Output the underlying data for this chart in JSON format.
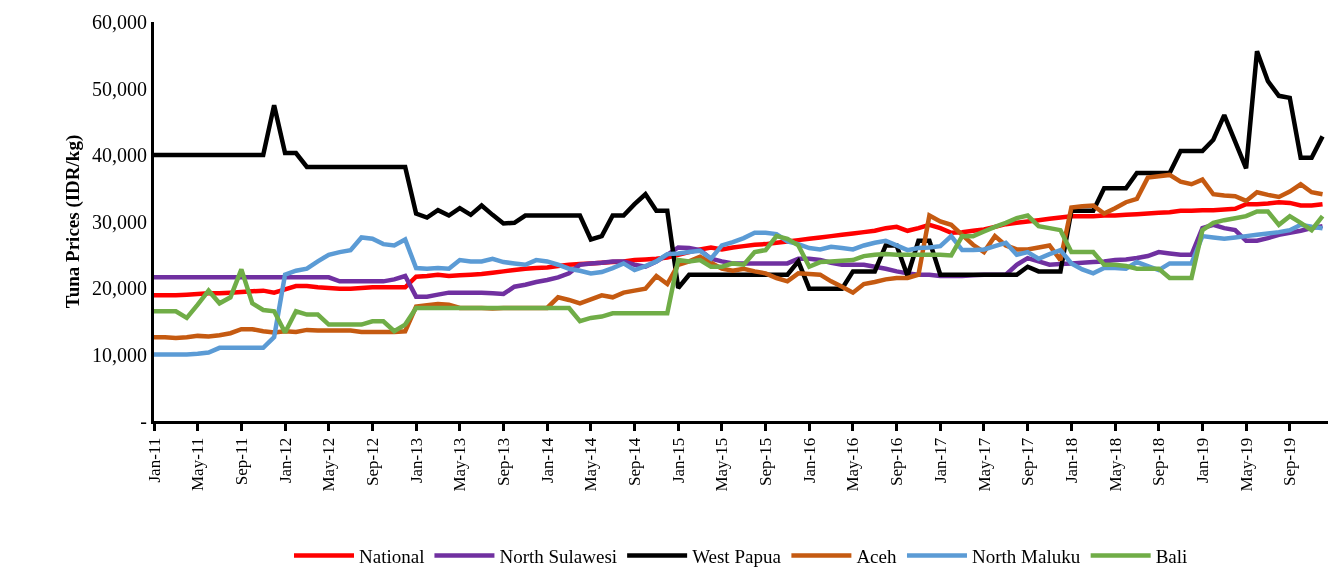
{
  "chart_data": {
    "type": "line",
    "ylabel": "Tuna Prices (IDR/kg)",
    "categories": [
      "Jan-11",
      null,
      null,
      null,
      "May-11",
      null,
      null,
      null,
      "Sep-11",
      null,
      null,
      null,
      "Jan-12",
      null,
      null,
      null,
      "May-12",
      null,
      null,
      null,
      "Sep-12",
      null,
      null,
      null,
      "Jan-13",
      null,
      null,
      null,
      "May-13",
      null,
      null,
      null,
      "Sep-13",
      null,
      null,
      null,
      "Jan-14",
      null,
      null,
      null,
      "May-14",
      null,
      null,
      null,
      "Sep-14",
      null,
      null,
      null,
      "Jan-15",
      null,
      null,
      null,
      "May-15",
      null,
      null,
      null,
      "Sep-15",
      null,
      null,
      null,
      "Jan-16",
      null,
      null,
      null,
      "May-16",
      null,
      null,
      null,
      "Sep-16",
      null,
      null,
      null,
      "Jan-17",
      null,
      null,
      null,
      "May-17",
      null,
      null,
      null,
      "Sep-17",
      null,
      null,
      null,
      "Jan-18",
      null,
      null,
      null,
      "May-18",
      null,
      null,
      null,
      "Sep-18",
      null,
      null,
      null,
      "Jan-19",
      null,
      null,
      null,
      "May-19",
      null,
      null,
      null,
      "Sep-19",
      null,
      null,
      null
    ],
    "ylim": [
      0,
      60000
    ],
    "yticks": [
      {
        "value": 0,
        "label": "-"
      },
      {
        "value": 10000,
        "label": "10,000"
      },
      {
        "value": 20000,
        "label": "20,000"
      },
      {
        "value": 30000,
        "label": "30,000"
      },
      {
        "value": 40000,
        "label": "40,000"
      },
      {
        "value": 50000,
        "label": "50,000"
      },
      {
        "value": 60000,
        "label": "60,000"
      }
    ],
    "legend": "bottom",
    "marker": "none",
    "line_style": "solid",
    "series": [
      {
        "name": "National",
        "color": "#ff0000",
        "values": [
          18900,
          18900,
          18900,
          19000,
          19100,
          19200,
          19200,
          19300,
          19400,
          19500,
          19600,
          19300,
          19800,
          20300,
          20300,
          20100,
          20000,
          19900,
          19900,
          20000,
          20100,
          20100,
          20100,
          20100,
          21700,
          21800,
          22000,
          21800,
          21900,
          22000,
          22100,
          22300,
          22500,
          22700,
          22900,
          23000,
          23100,
          23300,
          23500,
          23600,
          23700,
          23800,
          23900,
          24000,
          24200,
          24300,
          24400,
          24600,
          25000,
          25400,
          25800,
          26100,
          25800,
          26100,
          26300,
          26500,
          26600,
          26800,
          27000,
          27200,
          27400,
          27600,
          27800,
          28000,
          28200,
          28400,
          28600,
          29000,
          29200,
          28600,
          29000,
          29500,
          29000,
          28300,
          28400,
          28600,
          28800,
          29200,
          29600,
          29800,
          30000,
          30200,
          30400,
          30600,
          30800,
          30800,
          30800,
          30900,
          30900,
          31000,
          31100,
          31200,
          31300,
          31400,
          31600,
          31600,
          31700,
          31700,
          31800,
          31900,
          32600,
          32600,
          32700,
          32900,
          32800,
          32400,
          32400,
          32600
        ]
      },
      {
        "name": "North Sulawesi",
        "color": "#7030a0",
        "values": [
          21600,
          21600,
          21600,
          21600,
          21600,
          21600,
          21600,
          21600,
          21600,
          21600,
          21600,
          21600,
          21600,
          21600,
          21600,
          21600,
          21600,
          21000,
          21000,
          21000,
          21000,
          21000,
          21300,
          21800,
          18700,
          18700,
          19000,
          19300,
          19300,
          19300,
          19300,
          19200,
          19100,
          20200,
          20500,
          20900,
          21200,
          21600,
          22200,
          23500,
          23700,
          23800,
          24000,
          24000,
          23500,
          23200,
          24000,
          25000,
          26100,
          26000,
          25700,
          24400,
          24000,
          23700,
          23700,
          23700,
          23700,
          23700,
          23700,
          24400,
          24400,
          24200,
          23800,
          23500,
          23500,
          23500,
          23200,
          22900,
          22500,
          22200,
          22000,
          22000,
          21800,
          21800,
          21800,
          21900,
          22000,
          22000,
          22000,
          23500,
          24500,
          24000,
          23500,
          23600,
          23700,
          23800,
          23900,
          24000,
          24200,
          24300,
          24500,
          24800,
          25400,
          25200,
          25000,
          25000,
          29000,
          29500,
          29000,
          28700,
          27100,
          27100,
          27500,
          28000,
          28300,
          28600,
          29000,
          29300
        ]
      },
      {
        "name": "West Papua",
        "color": "#000000",
        "values": [
          40000,
          40000,
          40000,
          40000,
          40000,
          40000,
          40000,
          40000,
          40000,
          40000,
          40000,
          47500,
          40300,
          40300,
          38200,
          38200,
          38200,
          38200,
          38200,
          38200,
          38200,
          38200,
          38200,
          38200,
          31200,
          30600,
          31700,
          30900,
          32000,
          31000,
          32400,
          31000,
          29700,
          29800,
          30900,
          30900,
          30900,
          30900,
          30900,
          30900,
          27300,
          27800,
          30900,
          30900,
          32600,
          34100,
          31600,
          31600,
          20000,
          22000,
          22000,
          22000,
          22000,
          22000,
          22000,
          22000,
          22000,
          22000,
          22000,
          24000,
          19900,
          19900,
          19900,
          19900,
          22500,
          22500,
          22500,
          26400,
          26400,
          21800,
          27100,
          27100,
          22000,
          22000,
          22000,
          22000,
          22000,
          22000,
          22000,
          22000,
          23200,
          22500,
          22500,
          22500,
          31600,
          31600,
          31600,
          35000,
          35000,
          35000,
          37300,
          37300,
          37300,
          37300,
          40600,
          40600,
          40600,
          42300,
          46000,
          42000,
          38000,
          55600,
          51100,
          48900,
          48600,
          39600,
          39600,
          42800
        ]
      },
      {
        "name": "Aceh",
        "color": "#c55a11",
        "values": [
          12600,
          12600,
          12500,
          12600,
          12800,
          12700,
          12900,
          13200,
          13800,
          13800,
          13500,
          13300,
          13500,
          13400,
          13700,
          13600,
          13600,
          13600,
          13600,
          13400,
          13400,
          13400,
          13400,
          13500,
          17200,
          17400,
          17600,
          17500,
          17000,
          17000,
          17000,
          16900,
          17000,
          17000,
          17000,
          17000,
          17000,
          18600,
          18200,
          17700,
          18300,
          18900,
          18600,
          19300,
          19600,
          19900,
          21800,
          20600,
          23500,
          24000,
          24700,
          23800,
          22900,
          22600,
          22900,
          22500,
          22200,
          21500,
          21000,
          22200,
          22100,
          22000,
          21000,
          20200,
          19300,
          20600,
          20900,
          21300,
          21500,
          21500,
          22000,
          30900,
          30000,
          29500,
          28000,
          26500,
          25400,
          27800,
          26400,
          25800,
          25800,
          26100,
          26400,
          24200,
          32100,
          32300,
          32400,
          31200,
          32000,
          32900,
          33400,
          36600,
          36800,
          37000,
          36000,
          35600,
          36300,
          34100,
          33900,
          33800,
          33100,
          34400,
          34000,
          33700,
          34500,
          35600,
          34400,
          34100
        ]
      },
      {
        "name": "North Maluku",
        "color": "#5b9bd5",
        "values": [
          10000,
          10000,
          10000,
          10000,
          10100,
          10300,
          11000,
          11000,
          11000,
          11000,
          11000,
          12600,
          22000,
          22600,
          22900,
          24000,
          25000,
          25400,
          25700,
          27600,
          27400,
          26600,
          26400,
          27300,
          23000,
          22900,
          23000,
          22900,
          24200,
          24000,
          24000,
          24400,
          23900,
          23700,
          23500,
          24200,
          24000,
          23500,
          22900,
          22600,
          22200,
          22400,
          23000,
          23700,
          22700,
          23300,
          24000,
          25100,
          25200,
          25400,
          25600,
          24400,
          26400,
          26900,
          27500,
          28300,
          28300,
          28100,
          27000,
          26600,
          26000,
          25800,
          26200,
          26000,
          25800,
          26400,
          26800,
          27100,
          26400,
          25700,
          26000,
          26100,
          26300,
          27800,
          25700,
          25700,
          25800,
          26300,
          26800,
          25000,
          25400,
          24400,
          25100,
          25700,
          23700,
          22800,
          22200,
          23000,
          23000,
          22900,
          23900,
          23300,
          22700,
          23700,
          23700,
          23700,
          27800,
          27600,
          27400,
          27600,
          27800,
          28000,
          28200,
          28400,
          28700,
          29500,
          29200,
          29000
        ]
      },
      {
        "name": "Bali",
        "color": "#70ad47",
        "values": [
          16500,
          16500,
          16500,
          15500,
          17500,
          19600,
          17700,
          18600,
          22800,
          17700,
          16700,
          16500,
          13300,
          16500,
          16000,
          16000,
          14500,
          14500,
          14500,
          14500,
          15000,
          15000,
          13500,
          14500,
          17000,
          17000,
          17000,
          17000,
          17000,
          17000,
          17000,
          17000,
          17000,
          17000,
          17000,
          17000,
          17000,
          17000,
          17000,
          15000,
          15500,
          15700,
          16200,
          16200,
          16200,
          16200,
          16200,
          16200,
          24200,
          24000,
          24200,
          23200,
          23200,
          23700,
          23500,
          25400,
          25700,
          27800,
          27400,
          26400,
          23200,
          23900,
          24000,
          24100,
          24200,
          24800,
          25000,
          25100,
          25000,
          25000,
          25000,
          25000,
          25000,
          24900,
          27800,
          27800,
          28500,
          29200,
          29800,
          30500,
          30900,
          29300,
          29000,
          28700,
          25400,
          25400,
          25400,
          23500,
          23500,
          23300,
          22900,
          22900,
          22900,
          21500,
          21500,
          21500,
          28700,
          29800,
          30200,
          30500,
          30800,
          31500,
          31500,
          29500,
          30800,
          29800,
          28700,
          30800
        ]
      }
    ]
  }
}
